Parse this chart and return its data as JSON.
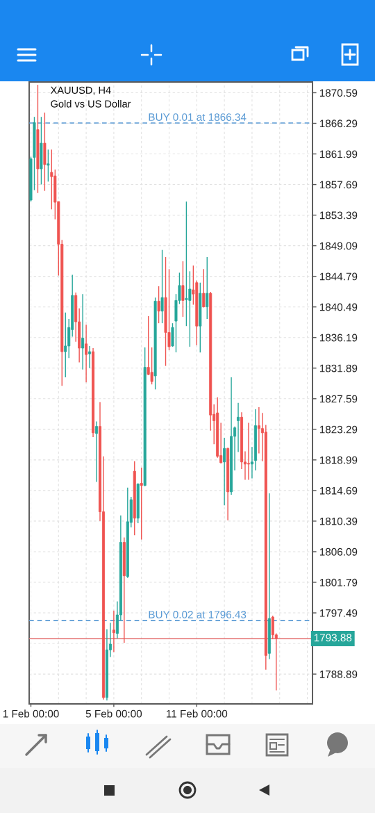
{
  "chart_data": {
    "type": "candlestick",
    "title": "XAUUSD, H4",
    "subtitle": "Gold vs US Dollar",
    "categories": [
      "1 Feb 00:00",
      null,
      null,
      null,
      null,
      null,
      null,
      null,
      null,
      null,
      null,
      null,
      null,
      null,
      null,
      null,
      null,
      null,
      null,
      null,
      null,
      null,
      null,
      null,
      "5 Feb 00:00",
      null,
      null,
      null,
      null,
      null,
      null,
      null,
      null,
      null,
      null,
      null,
      null,
      null,
      null,
      null,
      null,
      null,
      null,
      null,
      null,
      null,
      null,
      null,
      "11 Feb 00:00",
      null,
      null,
      null,
      null,
      null,
      null,
      null,
      null,
      null,
      null,
      null,
      null,
      null,
      null,
      null,
      null,
      null,
      null,
      null,
      null,
      null,
      null,
      null,
      null,
      null,
      null,
      null,
      null,
      null,
      null,
      null,
      null,
      null
    ],
    "ohlc": [
      [
        1855.5,
        1861.6,
        1855.3,
        1861.3
      ],
      [
        1861.5,
        1867.2,
        1856.9,
        1866.4
      ],
      [
        1865.4,
        1871.7,
        1856.5,
        1859.9
      ],
      [
        1859.9,
        1867.2,
        1857.7,
        1863.5
      ],
      [
        1863.5,
        1867.8,
        1856.8,
        1860.5
      ],
      [
        1860.4,
        1862.6,
        1858.1,
        1860.6
      ],
      [
        1859.4,
        1862.6,
        1854.2,
        1858.8
      ],
      [
        1858.9,
        1859.8,
        1852.8,
        1855.2
      ],
      [
        1855.3,
        1855.3,
        1844.9,
        1849.3
      ],
      [
        1849.3,
        1849.9,
        1829.4,
        1834.2
      ],
      [
        1834.2,
        1839.7,
        1830.6,
        1835.0
      ],
      [
        1835.0,
        1838.8,
        1833.3,
        1837.6
      ],
      [
        1837.3,
        1845.0,
        1836.3,
        1842.1
      ],
      [
        1842.1,
        1842.5,
        1835.6,
        1838.4
      ],
      [
        1838.4,
        1840.3,
        1832.7,
        1834.7
      ],
      [
        1834.7,
        1842.3,
        1831.7,
        1836.1
      ],
      [
        1835.3,
        1838.0,
        1829.9,
        1833.8
      ],
      [
        1833.9,
        1835.0,
        1831.9,
        1834.2
      ],
      [
        1834.2,
        1834.7,
        1822.2,
        1822.8
      ],
      [
        1822.7,
        1824.4,
        1815.9,
        1823.7
      ],
      [
        1823.7,
        1827.1,
        1810.4,
        1811.7
      ],
      [
        1811.7,
        1819.5,
        1785.3,
        1785.6
      ],
      [
        1785.6,
        1795.2,
        1785.2,
        1792.3
      ],
      [
        1792.3,
        1796.1,
        1791.3,
        1793.1
      ],
      [
        1795.1,
        1797.8,
        1792.0,
        1794.7
      ],
      [
        1794.6,
        1799.1,
        1793.9,
        1797.2
      ],
      [
        1797.2,
        1811.2,
        1796.4,
        1807.4
      ],
      [
        1807.4,
        1808.1,
        1793.3,
        1802.7
      ],
      [
        1802.6,
        1815.1,
        1802.4,
        1810.3
      ],
      [
        1810.2,
        1813.8,
        1809.5,
        1813.4
      ],
      [
        1817.4,
        1818.8,
        1808.4,
        1810.8
      ],
      [
        1810.8,
        1815.7,
        1810.1,
        1815.6
      ],
      [
        1815.7,
        1817.9,
        1807.8,
        1815.4
      ],
      [
        1815.4,
        1834.8,
        1815.3,
        1832.0
      ],
      [
        1832.0,
        1839.2,
        1830.9,
        1831.0
      ],
      [
        1831.3,
        1834.8,
        1829.6,
        1830.0
      ],
      [
        1830.8,
        1841.8,
        1828.9,
        1841.3
      ],
      [
        1841.3,
        1843.4,
        1838.2,
        1839.9
      ],
      [
        1839.9,
        1848.5,
        1838.2,
        1841.8
      ],
      [
        1841.8,
        1847.5,
        1832.2,
        1836.9
      ],
      [
        1836.9,
        1845.8,
        1834.4,
        1834.9
      ],
      [
        1835.0,
        1838.2,
        1834.9,
        1837.6
      ],
      [
        1838.5,
        1842.3,
        1834.1,
        1841.4
      ],
      [
        1841.4,
        1845.3,
        1840.9,
        1843.5
      ],
      [
        1843.5,
        1846.9,
        1839.1,
        1841.4
      ],
      [
        1841.5,
        1855.3,
        1837.8,
        1841.7
      ],
      [
        1841.4,
        1845.5,
        1834.9,
        1843.0
      ],
      [
        1842.9,
        1846.3,
        1840.8,
        1842.3
      ],
      [
        1843.9,
        1844.2,
        1835.1,
        1837.8
      ],
      [
        1837.8,
        1843.9,
        1834.1,
        1842.4
      ],
      [
        1842.4,
        1845.8,
        1840.4,
        1840.5
      ],
      [
        1840.5,
        1847.5,
        1838.8,
        1842.4
      ],
      [
        1842.4,
        1842.6,
        1823.1,
        1825.3
      ],
      [
        1825.4,
        1826.8,
        1821.2,
        1824.5
      ],
      [
        1825.6,
        1827.8,
        1819.3,
        1819.5
      ],
      [
        1819.6,
        1824.2,
        1818.5,
        1818.6
      ],
      [
        1818.7,
        1822.1,
        1812.6,
        1820.6
      ],
      [
        1820.6,
        1820.7,
        1810.5,
        1814.5
      ],
      [
        1814.5,
        1830.6,
        1814.1,
        1822.3
      ],
      [
        1822.3,
        1823.7,
        1817.5,
        1823.5
      ],
      [
        1824.5,
        1827.0,
        1820.1,
        1825.0
      ],
      [
        1825.0,
        1825.7,
        1817.7,
        1818.7
      ],
      [
        1818.7,
        1820.2,
        1816.2,
        1818.4
      ],
      [
        1818.5,
        1824.2,
        1816.2,
        1818.4
      ],
      [
        1818.4,
        1820.8,
        1816.4,
        1818.7
      ],
      [
        1818.9,
        1826.1,
        1817.5,
        1823.8
      ],
      [
        1823.8,
        1826.4,
        1819.9,
        1823.4
      ],
      [
        1823.4,
        1825.6,
        1818.8,
        1822.8
      ],
      [
        1822.9,
        1823.9,
        1789.5,
        1791.5
      ],
      [
        1791.8,
        1814.3,
        1791.0,
        1796.7
      ],
      [
        1796.9,
        1797.1,
        1793.8,
        1794.4
      ],
      [
        1794.4,
        1794.6,
        1786.6,
        1793.88
      ],
      null,
      null,
      null,
      null,
      null,
      null,
      null,
      null,
      null,
      null
    ],
    "colors": [
      "#26a69a",
      "#26a69a",
      "#ef5350",
      "#26a69a",
      "#ef5350",
      "#26a69a",
      "#ef5350",
      "#ef5350",
      "#ef5350",
      "#ef5350",
      "#26a69a",
      "#26a69a",
      "#26a69a",
      "#ef5350",
      "#ef5350",
      "#26a69a",
      "#ef5350",
      "#26a69a",
      "#ef5350",
      "#26a69a",
      "#ef5350",
      "#ef5350",
      "#26a69a",
      "#26a69a",
      "#ef5350",
      "#26a69a",
      "#26a69a",
      "#ef5350",
      "#26a69a",
      "#26a69a",
      "#ef5350",
      "#26a69a",
      "#ef5350",
      "#26a69a",
      "#ef5350",
      "#ef5350",
      "#26a69a",
      "#ef5350",
      "#26a69a",
      "#ef5350",
      "#ef5350",
      "#26a69a",
      "#26a69a",
      "#26a69a",
      "#ef5350",
      "#26a69a",
      "#26a69a",
      "#ef5350",
      "#ef5350",
      "#26a69a",
      "#ef5350",
      "#26a69a",
      "#ef5350",
      "#ef5350",
      "#ef5350",
      "#ef5350",
      "#26a69a",
      "#ef5350",
      "#26a69a",
      "#26a69a",
      "#26a69a",
      "#ef5350",
      "#ef5350",
      "#ef5350",
      "#26a69a",
      "#26a69a",
      "#ef5350",
      "#ef5350",
      "#ef5350",
      "#26a69a",
      "#ef5350",
      "#ef5350",
      null,
      null,
      null,
      null,
      null,
      null,
      null,
      null,
      null,
      null
    ],
    "ylim": [
      1784.7,
      1872.1
    ],
    "yticks": [
      1870.59,
      1866.29,
      1861.99,
      1857.69,
      1853.39,
      1849.09,
      1844.79,
      1840.49,
      1836.19,
      1831.89,
      1827.59,
      1823.29,
      1818.99,
      1814.69,
      1810.39,
      1806.09,
      1801.79,
      1797.49,
      {
        "value": 1793.19,
        "label": null
      },
      1788.89
    ],
    "grid": true,
    "ref_lines": [
      {
        "axis": "y",
        "value": 1866.34,
        "label": "BUY 0.01 at 1866.34",
        "color": "#5b9bd5",
        "line_style": "dashed"
      },
      {
        "axis": "y",
        "value": 1796.43,
        "label": "BUY 0.02 at 1796.43",
        "color": "#5b9bd5",
        "line_style": "dashed"
      },
      {
        "axis": "y",
        "value": 1793.88,
        "label": "1793.88",
        "color": "#e57373",
        "line_style": "solid"
      }
    ]
  }
}
